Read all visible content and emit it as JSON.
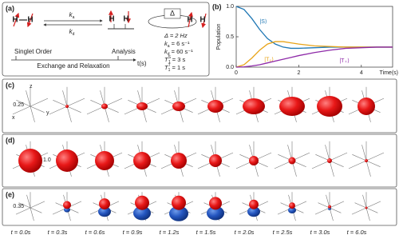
{
  "panel_a": {
    "label": "(a)",
    "atoms": [
      "H",
      "H",
      "H",
      "H",
      "H",
      "H"
    ],
    "rate_forward": {
      "main": "k",
      "sub": "a"
    },
    "rate_back": {
      "main": "k",
      "sub": "d"
    },
    "coupling": "Δ",
    "parameters": [
      {
        "main": "Δ = 2 Hz"
      },
      {
        "main": "k",
        "sub": "a",
        "rest": " = 6 s⁻¹"
      },
      {
        "main": "k",
        "sub": "d",
        "rest": " = 60 s⁻¹"
      },
      {
        "main": "T",
        "sub": "1",
        "sup": "S",
        "rest": " = 3 s"
      },
      {
        "main": "T",
        "sub": "1",
        "sup": "T",
        "rest": " = 1 s"
      }
    ],
    "timeline": {
      "start": "Singlet Order",
      "end": "Analysis",
      "middle": "Exchange and Relaxation",
      "axis": "t(s)"
    }
  },
  "chart_data": {
    "type": "line",
    "panel_label": "(b)",
    "x_label": "Time(s)",
    "y_label": "Population",
    "x": [
      0,
      0.25,
      0.5,
      0.75,
      1,
      1.25,
      1.5,
      1.75,
      2,
      2.5,
      3,
      3.5,
      4,
      4.5,
      5
    ],
    "series": [
      {
        "name": "|S⟩",
        "color": "#1f77b4",
        "values": [
          1,
          0.95,
          0.8,
          0.62,
          0.47,
          0.38,
          0.33,
          0.31,
          0.31,
          0.32,
          0.33,
          0.33,
          0.33,
          0.33,
          0.33
        ]
      },
      {
        "name": "|T₀⟩",
        "color": "#e8a317",
        "values": [
          0,
          0.04,
          0.15,
          0.28,
          0.38,
          0.42,
          0.42,
          0.4,
          0.38,
          0.35,
          0.34,
          0.33,
          0.33,
          0.33,
          0.33
        ]
      },
      {
        "name": "|T₊⟩",
        "color": "#8e2aa8",
        "values": [
          0,
          0.005,
          0.02,
          0.04,
          0.07,
          0.1,
          0.13,
          0.16,
          0.19,
          0.24,
          0.28,
          0.31,
          0.32,
          0.33,
          0.33
        ]
      }
    ],
    "xlim": [
      0,
      5
    ],
    "ylim": [
      0,
      1
    ],
    "xticks": [
      0,
      2,
      4
    ],
    "yticks": [
      {
        "value": 0,
        "label": "0.0"
      },
      {
        "value": 0.5,
        "label": "0.5"
      },
      {
        "value": 1,
        "label": "1.0"
      }
    ]
  },
  "panel_c": {
    "label": "(c)",
    "axes": [
      "z",
      "x",
      "y"
    ],
    "scale": "0.25"
  },
  "panel_d": {
    "label": "(d)",
    "scale": "1.0"
  },
  "panel_e": {
    "label": "(e)",
    "scale": "0.35"
  },
  "time_labels": [
    "t = 0.0s",
    "t = 0.3s",
    "t = 0.6s",
    "t = 0.9s",
    "t = 1.2s",
    "t = 1.5s",
    "t = 2.0s",
    "t = 2.5s",
    "t = 3.0s",
    "t = 6.0s"
  ]
}
